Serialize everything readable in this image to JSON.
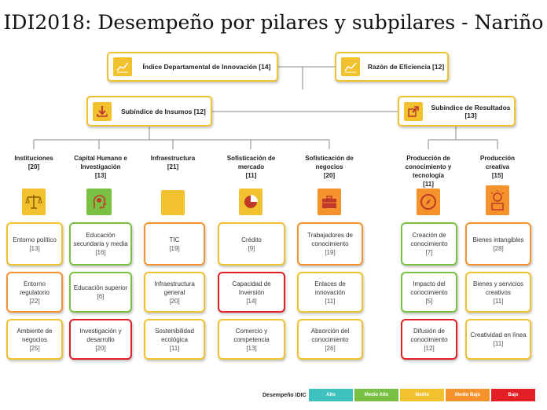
{
  "title": "IDI2018: Desempeño por pilares y subpilares - Nariño",
  "colors": {
    "Alto": "#3fc1c0",
    "Medio Alto": "#7ac143",
    "Medio": "#f2c12e",
    "Medio Bajo": "#f4922b",
    "Bajo": "#e31e24"
  },
  "top": {
    "idi": {
      "label": "Índice Departamental de Innovación [14]",
      "icon": "line-chart-icon",
      "level": "Medio"
    },
    "eff": {
      "label": "Razón de Eficiencia [12]",
      "icon": "line-chart-icon",
      "level": "Medio"
    },
    "inputs": {
      "label": "Subíndice de Insumos [12]",
      "icon": "download-icon",
      "level": "Medio"
    },
    "results": {
      "label": "Subíndice de Resultados [13]",
      "icon": "external-link-icon",
      "level": "Medio"
    }
  },
  "pillars": [
    {
      "name": "Instituciones",
      "code": "[20]",
      "icon": "scales-icon",
      "icon_color": "#f2c12e",
      "subs": [
        {
          "name": "Entorno político",
          "code": "[13]",
          "level": "Medio"
        },
        {
          "name": "Entorno regulatorio",
          "code": "[22]",
          "level": "Medio Bajo"
        },
        {
          "name": "Ambiente de negocios",
          "code": "[25]",
          "level": "Medio"
        }
      ]
    },
    {
      "name": "Capital Humano e Investigación",
      "code": "[13]",
      "icon": "brain-head-icon",
      "icon_color": "#7ac143",
      "subs": [
        {
          "name": "Educación secundaria y media",
          "code": "[16]",
          "level": "Medio Alto"
        },
        {
          "name": "Educación superior",
          "code": "[6]",
          "level": "Medio Alto"
        },
        {
          "name": "Investigación y desarrollo",
          "code": "[20]",
          "level": "Bajo"
        }
      ]
    },
    {
      "name": "Infraestructura",
      "code": "[21]",
      "icon": "infrastructure-icon",
      "icon_color": "#f2c12e",
      "subs": [
        {
          "name": "TIC",
          "code": "[19]",
          "level": "Medio Bajo"
        },
        {
          "name": "Infraestructura general",
          "code": "[20]",
          "level": "Medio"
        },
        {
          "name": "Sostenibilidad ecológica",
          "code": "[11]",
          "level": "Medio"
        }
      ]
    },
    {
      "name": "Sofisticación de mercado",
      "code": "[11]",
      "icon": "pie-chart-icon",
      "icon_color": "#f2c12e",
      "subs": [
        {
          "name": "Crédito",
          "code": "[9]",
          "level": "Medio"
        },
        {
          "name": "Capacidad de Inversión",
          "code": "[14]",
          "level": "Bajo"
        },
        {
          "name": "Comercio y competencia",
          "code": "[13]",
          "level": "Medio"
        }
      ]
    },
    {
      "name": "Sofisticación de negocios",
      "code": "[20]",
      "icon": "briefcase-icon",
      "icon_color": "#f4922b",
      "subs": [
        {
          "name": "Trabajadores de conocimiento",
          "code": "[19]",
          "level": "Medio Bajo"
        },
        {
          "name": "Enlaces de innovación",
          "code": "[11]",
          "level": "Medio"
        },
        {
          "name": "Absorción del conocimiento",
          "code": "[26]",
          "level": "Medio"
        }
      ]
    },
    {
      "name": "Producción de conocimiento y tecnología",
      "code": "[11]",
      "icon": "compass-icon",
      "icon_color": "#f4922b",
      "subs": [
        {
          "name": "Creación de conocimiento",
          "code": "[7]",
          "level": "Medio Alto"
        },
        {
          "name": "Impacto del conocimiento",
          "code": "[5]",
          "level": "Medio Alto"
        },
        {
          "name": "Difusión de conocimiento",
          "code": "[12]",
          "level": "Bajo"
        }
      ]
    },
    {
      "name": "Producción creativa",
      "code": "[15]",
      "icon": "lightbulb-icon",
      "icon_color": "#f4922b",
      "subs": [
        {
          "name": "Bienes intangibles",
          "code": "[28]",
          "level": "Medio Bajo"
        },
        {
          "name": "Bienes y servicios creativos",
          "code": "[11]",
          "level": "Medio"
        },
        {
          "name": "Creatividad en línea",
          "code": "[11]",
          "level": "Medio"
        }
      ]
    }
  ],
  "legend": {
    "title": "Desempeño IDIC",
    "items": [
      "Alto",
      "Medio Alto",
      "Medio",
      "Medio Bajo",
      "Bajo"
    ]
  }
}
